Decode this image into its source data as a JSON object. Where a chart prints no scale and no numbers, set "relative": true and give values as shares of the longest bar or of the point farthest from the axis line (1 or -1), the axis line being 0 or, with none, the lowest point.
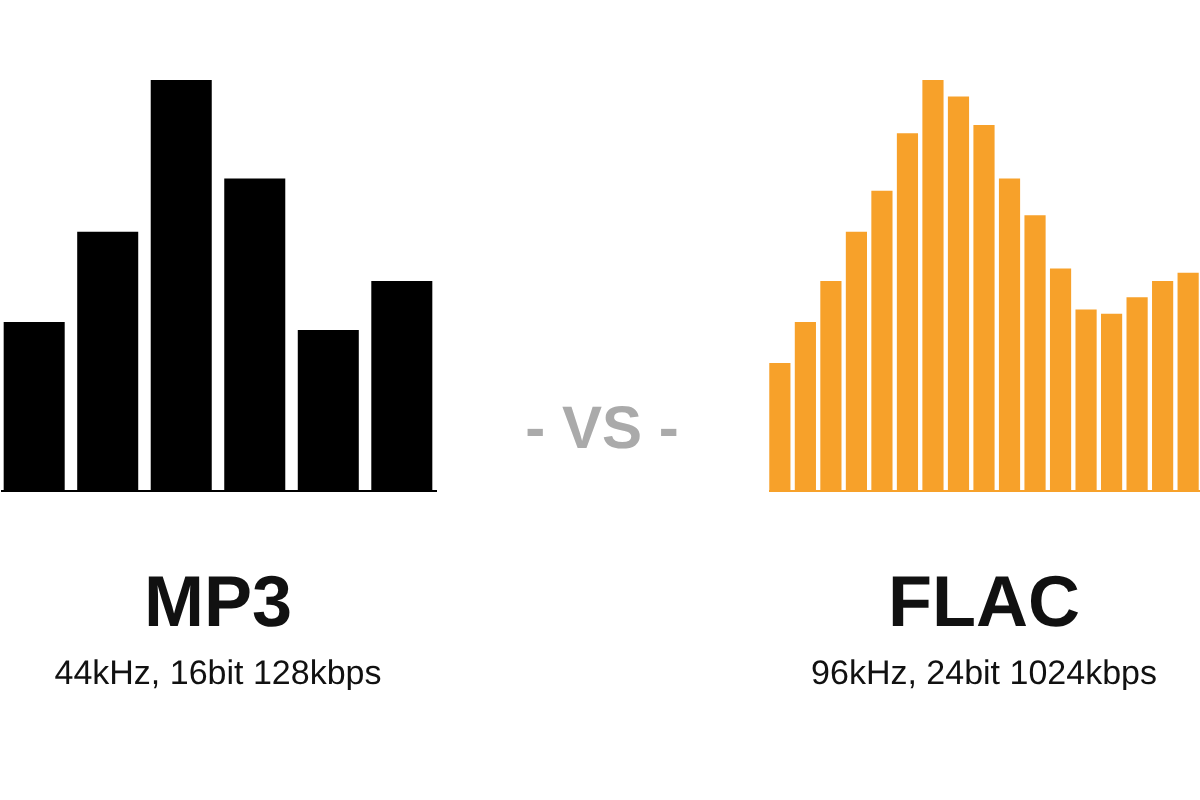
{
  "chart_data": [
    {
      "type": "bar",
      "title": "MP3",
      "subtitle": "44kHz, 16bit 128kbps",
      "relative": true,
      "color": "#000000",
      "categories": [
        null,
        null,
        null,
        null,
        null,
        null
      ],
      "values": [
        0.41,
        0.63,
        1,
        0.76,
        0.39,
        0.51
      ]
    },
    {
      "type": "other",
      "annotations": [
        "- VS -"
      ]
    },
    {
      "type": "bar",
      "title": "FLAC",
      "subtitle": "96kHz, 24bit 1024kbps",
      "relative": true,
      "color": "#f7a12a",
      "categories": [
        null,
        null,
        null,
        null,
        null,
        null,
        null,
        null,
        null,
        null,
        null,
        null,
        null,
        null,
        null,
        null,
        null
      ],
      "values": [
        0.31,
        0.41,
        0.51,
        0.63,
        0.73,
        0.87,
        1,
        0.96,
        0.89,
        0.76,
        0.67,
        0.54,
        0.44,
        0.43,
        0.47,
        0.51,
        0.53
      ]
    }
  ]
}
